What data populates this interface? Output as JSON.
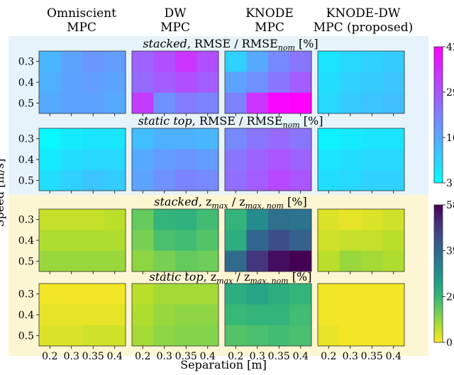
{
  "chart_data": {
    "type": "heatmap",
    "xlabel": "Separation [m]",
    "ylabel": "Speed [m/s]",
    "columns": [
      {
        "line1": "Omniscient",
        "line2": "MPC"
      },
      {
        "line1": "DW",
        "line2": "MPC"
      },
      {
        "line1": "KNODE",
        "line2": "MPC"
      },
      {
        "line1": "KNODE-DW",
        "line2": "MPC (proposed)"
      }
    ],
    "x_ticks": [
      "0.2",
      "0.3",
      "0.35",
      "0.4"
    ],
    "y_ticks": [
      "0.3",
      "0.4",
      "0.5"
    ],
    "groups": [
      {
        "metric": "RMSE",
        "colormap": "cool",
        "colors": [
          "#00ffff",
          "#ff00ff"
        ],
        "vmin": 3,
        "vmax": 42,
        "colorbar_ticks": [
          "42",
          "29",
          "16",
          "3"
        ],
        "rows": [
          {
            "title_prefix": "stacked",
            "title_suffix": ", RMSE / RMSE",
            "title_sub": "nom",
            "title_tail": " [%]",
            "panels": [
              [
                [
                  14,
                  17,
                  19,
                  18
                ],
                [
                  15,
                  17,
                  18,
                  17
                ],
                [
                  16,
                  17,
                  17,
                  16
                ]
              ],
              [
                [
                  27,
                  30,
                  34,
                  30
                ],
                [
                  26,
                  28,
                  30,
                  28
                ],
                [
                  33,
                  20,
                  23,
                  22
                ]
              ],
              [
                [
                  10,
                  16,
                  21,
                  24
                ],
                [
                  17,
                  20,
                  24,
                  28
                ],
                [
                  22,
                  34,
                  41,
                  42
                ]
              ],
              [
                [
                  7,
                  9,
                  10,
                  11
                ],
                [
                  8,
                  10,
                  11,
                  12
                ],
                [
                  9,
                  11,
                  12,
                  13
                ]
              ]
            ]
          },
          {
            "title_prefix": "static top",
            "title_suffix": ", RMSE / RMSE",
            "title_sub": "nom",
            "title_tail": " [%]",
            "panels": [
              [
                [
                  4,
                  6,
                  7,
                  7
                ],
                [
                  6,
                  8,
                  9,
                  9
                ],
                [
                  8,
                  10,
                  12,
                  11
                ]
              ],
              [
                [
                  13,
                  15,
                  15,
                  14
                ],
                [
                  16,
                  18,
                  19,
                  18
                ],
                [
                  17,
                  20,
                  22,
                  21
                ]
              ],
              [
                [
                  21,
                  24,
                  26,
                  24
                ],
                [
                  24,
                  27,
                  29,
                  27
                ],
                [
                  25,
                  28,
                  31,
                  29
                ]
              ],
              [
                [
                  5,
                  6,
                  7,
                  7
                ],
                [
                  7,
                  8,
                  9,
                  9
                ],
                [
                  8,
                  9,
                  10,
                  10
                ]
              ]
            ]
          }
        ]
      },
      {
        "metric": "z_max",
        "colormap": "viridis_r",
        "colors": [
          "#fde725",
          "#b5de2b",
          "#6ece58",
          "#35b779",
          "#1f9e89",
          "#26828e",
          "#31688e",
          "#3e4989",
          "#482878",
          "#440154"
        ],
        "vmin": 0,
        "vmax": 58,
        "colorbar_ticks": [
          "58",
          "39",
          "20",
          "0"
        ],
        "rows": [
          {
            "title_prefix": "stacked",
            "title_suffix": ", z",
            "title_sub": "max",
            "title_mid": " / z",
            "title_sub2": "max, nom",
            "title_tail": " [%]",
            "panels": [
              [
                [
                  5,
                  5,
                  5,
                  6
                ],
                [
                  7,
                  7,
                  7,
                  7
                ],
                [
                  9,
                  9,
                  9,
                  9
                ]
              ],
              [
                [
                  14,
                  20,
                  21,
                  18
                ],
                [
                  12,
                  17,
                  18,
                  16
                ],
                [
                  10,
                  12,
                  14,
                  13
                ]
              ],
              [
                [
                  20,
                  30,
                  37,
                  36
                ],
                [
                  22,
                  39,
                  44,
                  40
                ],
                [
                  38,
                  49,
                  56,
                  58
                ]
              ],
              [
                [
                  3,
                  2,
                  3,
                  4
                ],
                [
                  4,
                  5,
                  5,
                  6
                ],
                [
                  6,
                  9,
                  8,
                  7
                ]
              ]
            ]
          },
          {
            "title_prefix": "static top",
            "title_suffix": ", z",
            "title_sub": "max",
            "title_mid": " / z",
            "title_sub2": "max, nom",
            "title_tail": " [%]",
            "panels": [
              [
                [
                  1,
                  1,
                  1,
                  1
                ],
                [
                  2,
                  2,
                  2,
                  2
                ],
                [
                  3,
                  3,
                  4,
                  4
                ]
              ],
              [
                [
                  6,
                  8,
                  8,
                  8
                ],
                [
                  7,
                  9,
                  10,
                  10
                ],
                [
                  8,
                  10,
                  11,
                  11
                ]
              ],
              [
                [
                  22,
                  24,
                  22,
                  20
                ],
                [
                  19,
                  20,
                  20,
                  18
                ],
                [
                  16,
                  17,
                  18,
                  17
                ]
              ],
              [
                [
                  1,
                  1,
                  1,
                  1
                ],
                [
                  1,
                  1,
                  1,
                  1
                ],
                [
                  2,
                  1,
                  1,
                  1
                ]
              ]
            ]
          }
        ]
      }
    ]
  }
}
